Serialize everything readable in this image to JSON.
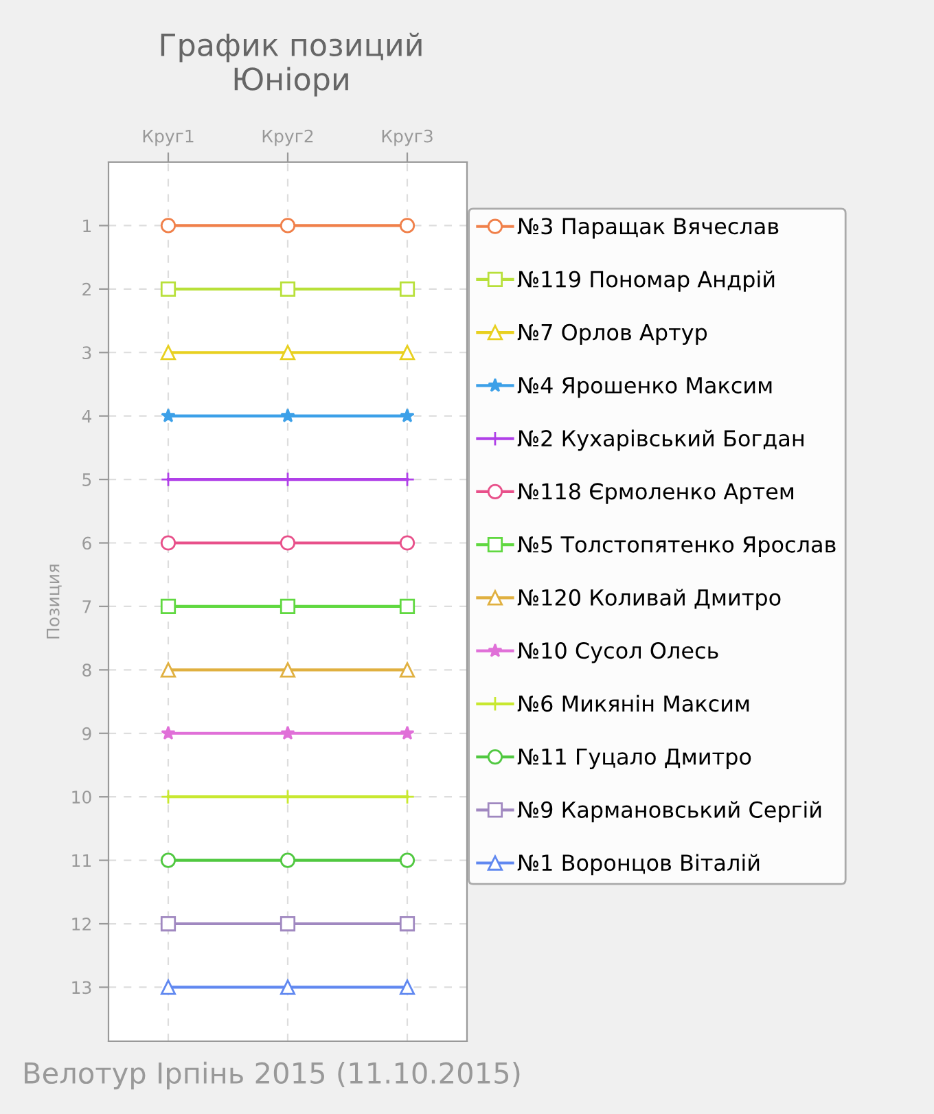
{
  "chart_data": {
    "type": "line",
    "title": "График позиций\nЮніори",
    "ylabel": "Позиция",
    "annotations": [
      "Велотур Ірпінь 2015 (11.10.2015)"
    ],
    "categories": [
      "Круг1",
      "Круг2",
      "Круг3"
    ],
    "ylim": [
      13.85,
      0
    ],
    "yticks": [
      1,
      2,
      3,
      4,
      5,
      6,
      7,
      8,
      9,
      10,
      11,
      12,
      13
    ],
    "grid": true,
    "legend": "right",
    "line_style": "solid",
    "series": [
      {
        "name": "№3 Паращак Вячеслав",
        "color": "#f0804a",
        "marker": "circle",
        "values": [
          1,
          1,
          1
        ]
      },
      {
        "name": "№119 Пономар Андрій",
        "color": "#b8e03a",
        "marker": "square",
        "values": [
          2,
          2,
          2
        ]
      },
      {
        "name": "№7 Орлов Артур",
        "color": "#e8d020",
        "marker": "triangle",
        "values": [
          3,
          3,
          3
        ]
      },
      {
        "name": "№4 Ярошенко Максим",
        "color": "#3ca0e8",
        "marker": "star",
        "values": [
          4,
          4,
          4
        ]
      },
      {
        "name": "№2 Кухарівський Богдан",
        "color": "#b040e8",
        "marker": "cross",
        "values": [
          5,
          5,
          5
        ]
      },
      {
        "name": "№118 Єрмоленко Артем",
        "color": "#e8508a",
        "marker": "circle",
        "values": [
          6,
          6,
          6
        ]
      },
      {
        "name": "№5 Толстопятенко Ярослав",
        "color": "#60d840",
        "marker": "square",
        "values": [
          7,
          7,
          7
        ]
      },
      {
        "name": "№120 Коливай Дмитро",
        "color": "#e0b040",
        "marker": "triangle",
        "values": [
          8,
          8,
          8
        ]
      },
      {
        "name": "№10 Сусол Олесь",
        "color": "#e070d8",
        "marker": "star",
        "values": [
          9,
          9,
          9
        ]
      },
      {
        "name": "№6 Микянін Максим",
        "color": "#c8e830",
        "marker": "cross",
        "values": [
          10,
          10,
          10
        ]
      },
      {
        "name": "№11 Гуцало Дмитро",
        "color": "#50c840",
        "marker": "circle",
        "values": [
          11,
          11,
          11
        ]
      },
      {
        "name": "№9 Кармановський Сергій",
        "color": "#a088c0",
        "marker": "square",
        "values": [
          12,
          12,
          12
        ]
      },
      {
        "name": "№1 Воронцов Віталій",
        "color": "#6088f0",
        "marker": "triangle",
        "values": [
          13,
          13,
          13
        ]
      }
    ]
  }
}
